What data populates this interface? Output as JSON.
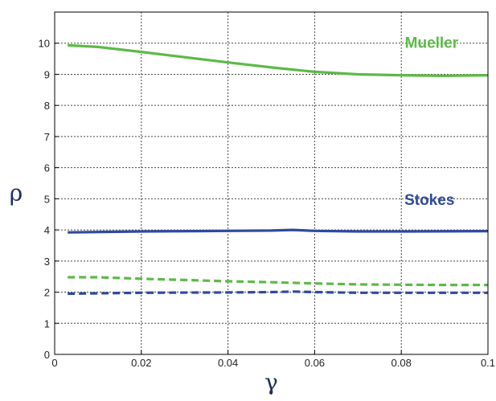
{
  "chart_data": {
    "type": "line",
    "title": "",
    "xlabel": "γ",
    "ylabel": "ρ",
    "xlim": [
      0,
      0.1
    ],
    "ylim": [
      0,
      11
    ],
    "grid": true,
    "x_ticks": [
      "0",
      "0.02",
      "0.04",
      "0.06",
      "0.08",
      "0.1"
    ],
    "y_ticks": [
      "0",
      "1",
      "2",
      "3",
      "4",
      "5",
      "6",
      "7",
      "8",
      "9",
      "10"
    ],
    "series": [
      {
        "name": "Mueller",
        "color": "#5cba47",
        "style": "solid",
        "labeled": true,
        "x": [
          0.003,
          0.01,
          0.02,
          0.03,
          0.04,
          0.05,
          0.06,
          0.07,
          0.08,
          0.09,
          0.1
        ],
        "y": [
          9.93,
          9.88,
          9.72,
          9.55,
          9.38,
          9.22,
          9.08,
          9.0,
          8.97,
          8.95,
          8.97
        ]
      },
      {
        "name": "Stokes",
        "color": "#2f4a9e",
        "style": "solid",
        "labeled": true,
        "x": [
          0.003,
          0.02,
          0.04,
          0.05,
          0.055,
          0.06,
          0.07,
          0.08,
          0.1
        ],
        "y": [
          3.92,
          3.95,
          3.97,
          3.98,
          4.0,
          3.97,
          3.95,
          3.95,
          3.96
        ]
      },
      {
        "color": "#5cba47",
        "style": "dashed",
        "labeled": false,
        "x": [
          0.003,
          0.01,
          0.02,
          0.03,
          0.04,
          0.05,
          0.06,
          0.07,
          0.08,
          0.09,
          0.1
        ],
        "y": [
          2.48,
          2.48,
          2.43,
          2.39,
          2.35,
          2.32,
          2.28,
          2.25,
          2.24,
          2.23,
          2.23
        ]
      },
      {
        "color": "#2f4a9e",
        "style": "dashed",
        "labeled": false,
        "x": [
          0.003,
          0.02,
          0.04,
          0.05,
          0.055,
          0.06,
          0.07,
          0.08,
          0.1
        ],
        "y": [
          1.95,
          1.98,
          1.99,
          2.0,
          2.02,
          2.0,
          1.98,
          1.98,
          1.98
        ]
      }
    ]
  }
}
